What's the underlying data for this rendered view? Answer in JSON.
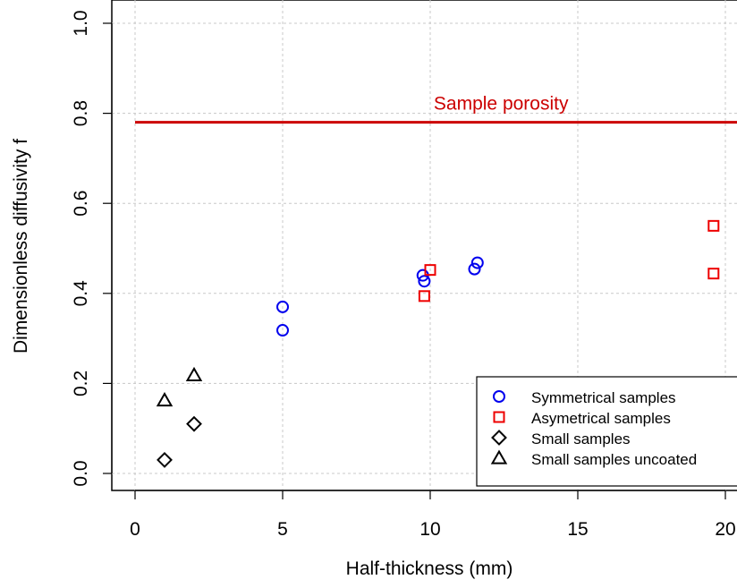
{
  "chart_data": {
    "type": "scatter",
    "xlabel": "Half-thickness (mm)",
    "ylabel": "Dimensionless diffusivity f",
    "xlim": [
      0,
      20
    ],
    "ylim": [
      0,
      1.0
    ],
    "xticks": [
      0,
      5,
      10,
      15,
      20
    ],
    "yticks": [
      0.0,
      0.2,
      0.4,
      0.6,
      0.8,
      1.0
    ],
    "xtick_labels": [
      "0",
      "5",
      "10",
      "15",
      "20"
    ],
    "ytick_labels": [
      "0.0",
      "0.2",
      "0.4",
      "0.6",
      "0.8",
      "1.0"
    ],
    "grid": true,
    "legend_position": "bottom-right",
    "reference_line": {
      "y": 0.78,
      "label": "Sample porosity",
      "color": "#cc0000"
    },
    "series": [
      {
        "name": "Symmetrical samples",
        "marker": "circle",
        "color": "#0000ee",
        "points": [
          [
            5.0,
            0.37
          ],
          [
            5.0,
            0.318
          ],
          [
            9.75,
            0.44
          ],
          [
            9.8,
            0.427
          ],
          [
            11.5,
            0.454
          ],
          [
            11.6,
            0.468
          ]
        ]
      },
      {
        "name": "Asymetrical samples",
        "marker": "square",
        "color": "#ee0000",
        "points": [
          [
            10.0,
            0.452
          ],
          [
            9.8,
            0.394
          ],
          [
            19.6,
            0.55
          ],
          [
            19.6,
            0.444
          ]
        ]
      },
      {
        "name": "Small samples",
        "marker": "diamond",
        "color": "#000000",
        "points": [
          [
            1.0,
            0.03
          ],
          [
            2.0,
            0.11
          ]
        ]
      },
      {
        "name": "Small samples uncoated",
        "marker": "triangle",
        "color": "#000000",
        "points": [
          [
            1.0,
            0.162
          ],
          [
            2.0,
            0.218
          ]
        ]
      }
    ]
  }
}
